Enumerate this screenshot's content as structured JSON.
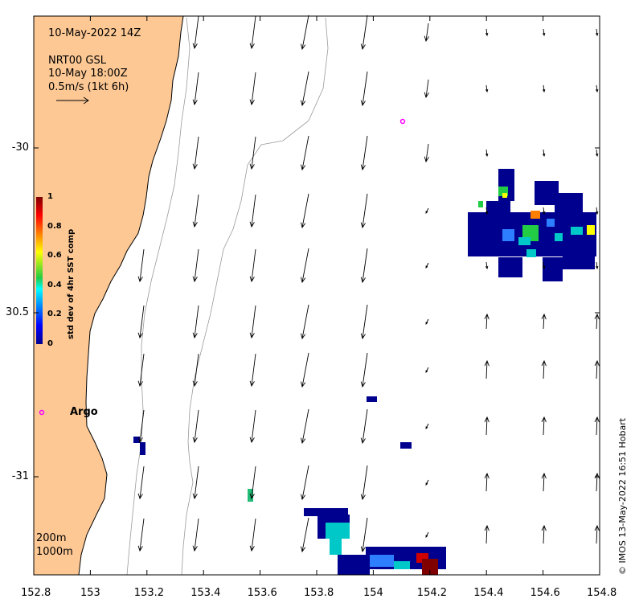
{
  "map": {
    "date_label": "10-May-2022 14Z",
    "product": "NRT00 GSL",
    "product_time": "10-May 18:00Z",
    "scale_label": "0.5m/s (1kt 6h)",
    "argo_label": "Argo",
    "contour_200": "200m",
    "contour_1000": "1000m",
    "credit": "© IMOS 13-May-2022 16:51 Hobart",
    "colorbar": {
      "label": "std dev of 4hr SST comp",
      "ticks": [
        "1",
        "0.8",
        "0.6",
        "0.4",
        "0.2",
        "0"
      ],
      "range": [
        0,
        1
      ]
    },
    "x_ticks": [
      "152.8",
      "153",
      "153.2",
      "153.4",
      "153.6",
      "153.8",
      "154",
      "154.2",
      "154.4",
      "154.6",
      "154.8"
    ],
    "y_ticks": [
      "-30",
      "30.5",
      "-31"
    ],
    "x_range": [
      152.8,
      154.8
    ],
    "y_range": [
      -31.3,
      -29.6
    ],
    "land_color": "#fdc894",
    "argo_color": "#ff00ff",
    "argo_floats": [
      {
        "lon": 154.11,
        "lat": -29.91
      },
      {
        "lon": 152.83,
        "lat": -30.81
      }
    ]
  }
}
